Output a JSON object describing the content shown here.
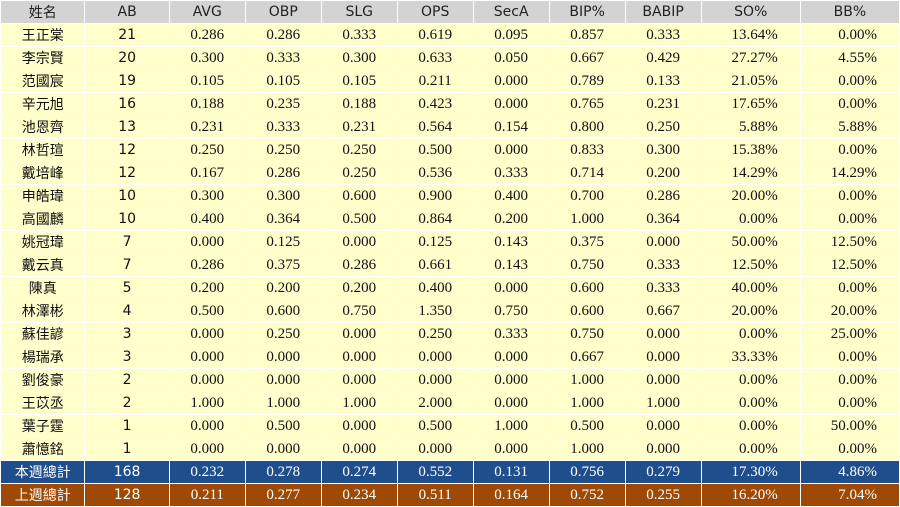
{
  "table": {
    "headers": [
      "姓名",
      "AB",
      "AVG",
      "OBP",
      "SLG",
      "OPS",
      "SecA",
      "BIP%",
      "BABIP",
      "SO%",
      "BB%"
    ],
    "rows": [
      [
        "王正棠",
        "21",
        "0.286",
        "0.286",
        "0.333",
        "0.619",
        "0.095",
        "0.857",
        "0.333",
        "13.64%",
        "0.00%"
      ],
      [
        "李宗賢",
        "20",
        "0.300",
        "0.333",
        "0.300",
        "0.633",
        "0.050",
        "0.667",
        "0.429",
        "27.27%",
        "4.55%"
      ],
      [
        "范國宸",
        "19",
        "0.105",
        "0.105",
        "0.105",
        "0.211",
        "0.000",
        "0.789",
        "0.133",
        "21.05%",
        "0.00%"
      ],
      [
        "辛元旭",
        "16",
        "0.188",
        "0.235",
        "0.188",
        "0.423",
        "0.000",
        "0.765",
        "0.231",
        "17.65%",
        "0.00%"
      ],
      [
        "池恩齊",
        "13",
        "0.231",
        "0.333",
        "0.231",
        "0.564",
        "0.154",
        "0.800",
        "0.250",
        "5.88%",
        "5.88%"
      ],
      [
        "林哲瑄",
        "12",
        "0.250",
        "0.250",
        "0.250",
        "0.500",
        "0.000",
        "0.833",
        "0.300",
        "15.38%",
        "0.00%"
      ],
      [
        "戴培峰",
        "12",
        "0.167",
        "0.286",
        "0.250",
        "0.536",
        "0.333",
        "0.714",
        "0.200",
        "14.29%",
        "14.29%"
      ],
      [
        "申皓瑋",
        "10",
        "0.300",
        "0.300",
        "0.600",
        "0.900",
        "0.400",
        "0.700",
        "0.286",
        "20.00%",
        "0.00%"
      ],
      [
        "高國麟",
        "10",
        "0.400",
        "0.364",
        "0.500",
        "0.864",
        "0.200",
        "1.000",
        "0.364",
        "0.00%",
        "0.00%"
      ],
      [
        "姚冠瑋",
        "7",
        "0.000",
        "0.125",
        "0.000",
        "0.125",
        "0.143",
        "0.375",
        "0.000",
        "50.00%",
        "12.50%"
      ],
      [
        "戴云真",
        "7",
        "0.286",
        "0.375",
        "0.286",
        "0.661",
        "0.143",
        "0.750",
        "0.333",
        "12.50%",
        "12.50%"
      ],
      [
        "陳真",
        "5",
        "0.200",
        "0.200",
        "0.200",
        "0.400",
        "0.000",
        "0.600",
        "0.333",
        "40.00%",
        "0.00%"
      ],
      [
        "林澤彬",
        "4",
        "0.500",
        "0.600",
        "0.750",
        "1.350",
        "0.750",
        "0.600",
        "0.667",
        "20.00%",
        "20.00%"
      ],
      [
        "蘇佳諺",
        "3",
        "0.000",
        "0.250",
        "0.000",
        "0.250",
        "0.333",
        "0.750",
        "0.000",
        "0.00%",
        "25.00%"
      ],
      [
        "楊瑞承",
        "3",
        "0.000",
        "0.000",
        "0.000",
        "0.000",
        "0.000",
        "0.667",
        "0.000",
        "33.33%",
        "0.00%"
      ],
      [
        "劉俊豪",
        "2",
        "0.000",
        "0.000",
        "0.000",
        "0.000",
        "0.000",
        "1.000",
        "0.000",
        "0.00%",
        "0.00%"
      ],
      [
        "王苡丞",
        "2",
        "1.000",
        "1.000",
        "1.000",
        "2.000",
        "0.000",
        "1.000",
        "1.000",
        "0.00%",
        "0.00%"
      ],
      [
        "葉子霆",
        "1",
        "0.000",
        "0.500",
        "0.000",
        "0.500",
        "1.000",
        "0.500",
        "0.000",
        "0.00%",
        "50.00%"
      ],
      [
        "蕭憶銘",
        "1",
        "0.000",
        "0.000",
        "0.000",
        "0.000",
        "0.000",
        "1.000",
        "0.000",
        "0.00%",
        "0.00%"
      ]
    ],
    "totals": [
      [
        "本週總計",
        "168",
        "0.232",
        "0.278",
        "0.274",
        "0.552",
        "0.131",
        "0.756",
        "0.279",
        "17.30%",
        "4.86%"
      ],
      [
        "上週總計",
        "128",
        "0.211",
        "0.277",
        "0.234",
        "0.511",
        "0.164",
        "0.752",
        "0.255",
        "16.20%",
        "7.04%"
      ]
    ]
  },
  "colors": {
    "header_bg": "#d3d3d3",
    "row_bg": "#ffffcc",
    "this_week_total_bg": "#1f4e8c",
    "last_week_total_bg": "#9e4a06"
  }
}
